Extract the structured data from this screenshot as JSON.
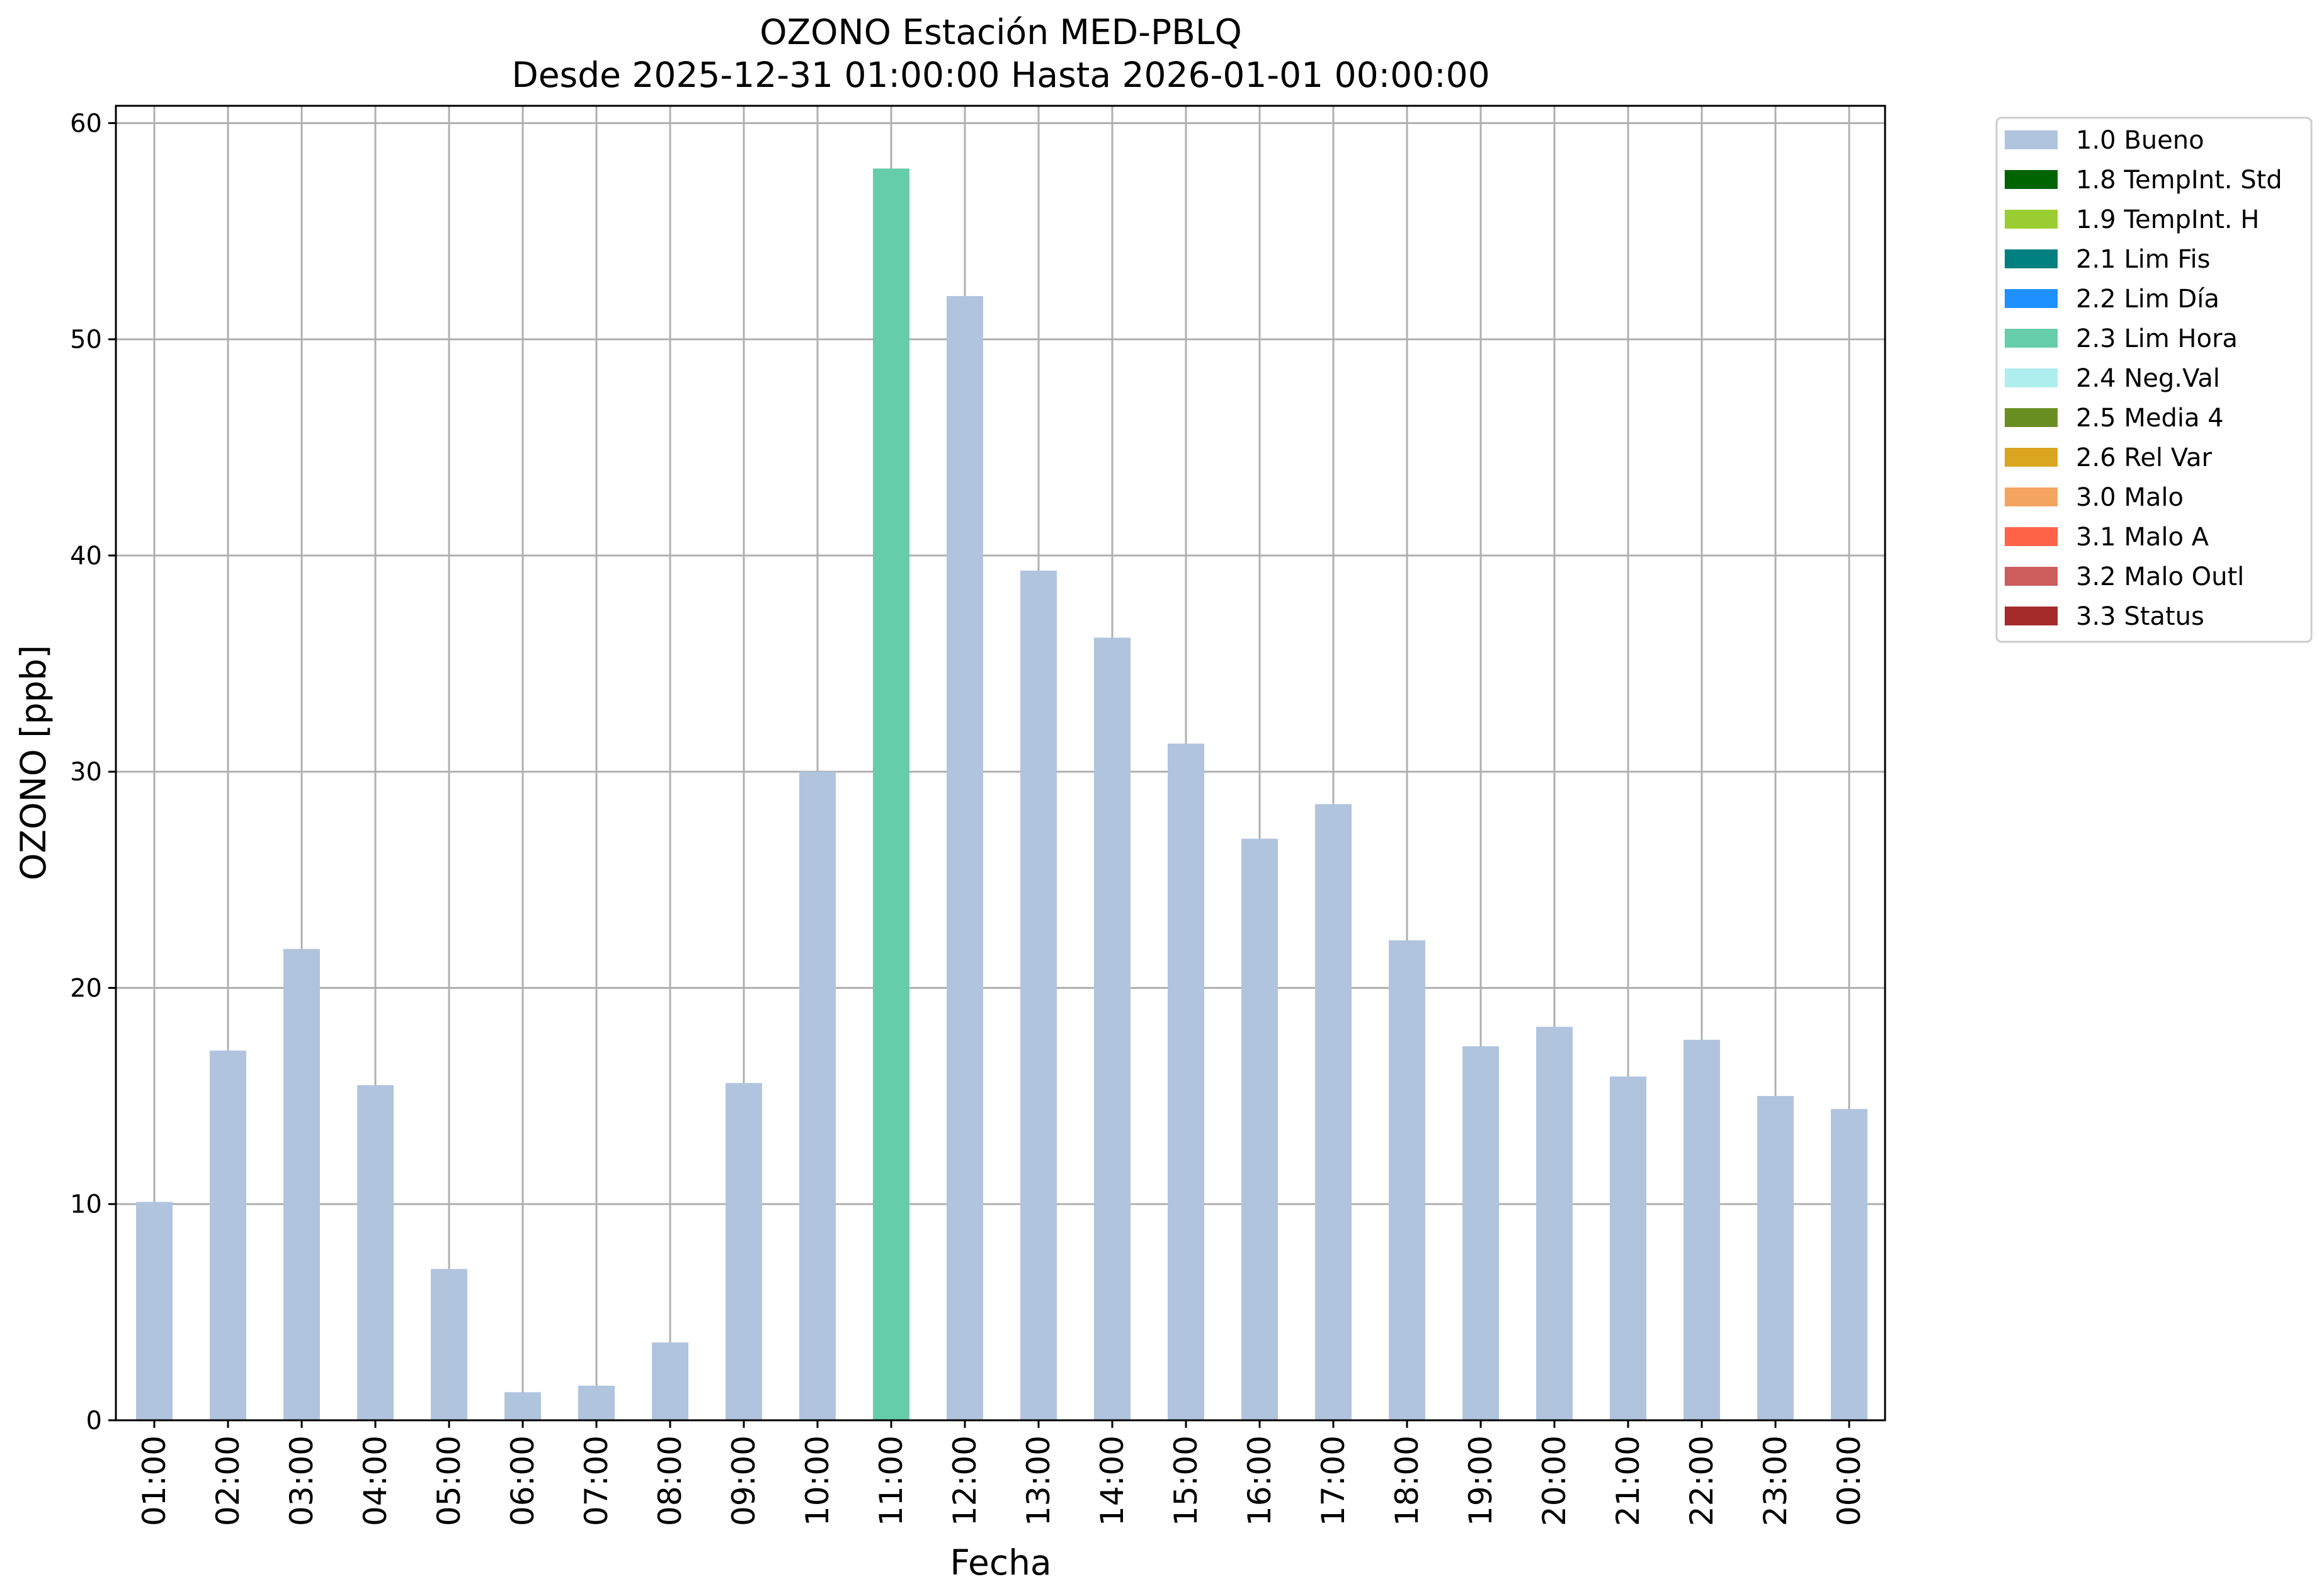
{
  "chart_data": {
    "type": "bar",
    "title": "OZONO Estación MED-PBLQ",
    "subtitle": "Desde 2025-12-31 01:00:00 Hasta 2026-01-01 00:00:00",
    "xlabel": "Fecha",
    "ylabel": "OZONO [ppb]",
    "ylim": [
      0,
      60.8
    ],
    "yticks": [
      0,
      10,
      20,
      30,
      40,
      50,
      60
    ],
    "grid": true,
    "legend_position": "outside-top-right",
    "categories": [
      "01:00",
      "02:00",
      "03:00",
      "04:00",
      "05:00",
      "06:00",
      "07:00",
      "08:00",
      "09:00",
      "10:00",
      "11:00",
      "12:00",
      "13:00",
      "14:00",
      "15:00",
      "16:00",
      "17:00",
      "18:00",
      "19:00",
      "20:00",
      "21:00",
      "22:00",
      "23:00",
      "00:00"
    ],
    "values": [
      10.1,
      17.1,
      21.8,
      15.5,
      7.0,
      1.3,
      1.6,
      3.6,
      15.6,
      30.0,
      57.9,
      52.0,
      39.3,
      36.2,
      31.3,
      26.9,
      28.5,
      22.2,
      17.3,
      18.2,
      15.9,
      17.6,
      15.0,
      14.4
    ],
    "flags": [
      "1.0 Bueno",
      "1.0 Bueno",
      "1.0 Bueno",
      "1.0 Bueno",
      "1.0 Bueno",
      "1.0 Bueno",
      "1.0 Bueno",
      "1.0 Bueno",
      "1.0 Bueno",
      "1.0 Bueno",
      "2.3 Lim Hora",
      "1.0 Bueno",
      "1.0 Bueno",
      "1.0 Bueno",
      "1.0 Bueno",
      "1.0 Bueno",
      "1.0 Bueno",
      "1.0 Bueno",
      "1.0 Bueno",
      "1.0 Bueno",
      "1.0 Bueno",
      "1.0 Bueno",
      "1.0 Bueno",
      "1.0 Bueno"
    ],
    "legend": [
      {
        "label": "1.0 Bueno",
        "color": "#b0c4de"
      },
      {
        "label": "1.8 TempInt. Std",
        "color": "#006400"
      },
      {
        "label": "1.9 TempInt. H",
        "color": "#9acd32"
      },
      {
        "label": "2.1 Lim Fis",
        "color": "#008080"
      },
      {
        "label": "2.2 Lim Día",
        "color": "#1e90ff"
      },
      {
        "label": "2.3 Lim Hora",
        "color": "#66cdaa"
      },
      {
        "label": "2.4 Neg.Val",
        "color": "#afeeee"
      },
      {
        "label": "2.5 Media 4",
        "color": "#6b8e23"
      },
      {
        "label": "2.6 Rel Var",
        "color": "#daa520"
      },
      {
        "label": "3.0 Malo",
        "color": "#f4a460"
      },
      {
        "label": "3.1 Malo A",
        "color": "#ff6347"
      },
      {
        "label": "3.2 Malo Outl",
        "color": "#cd5c5c"
      },
      {
        "label": "3.3 Status",
        "color": "#a52a2a"
      }
    ]
  }
}
